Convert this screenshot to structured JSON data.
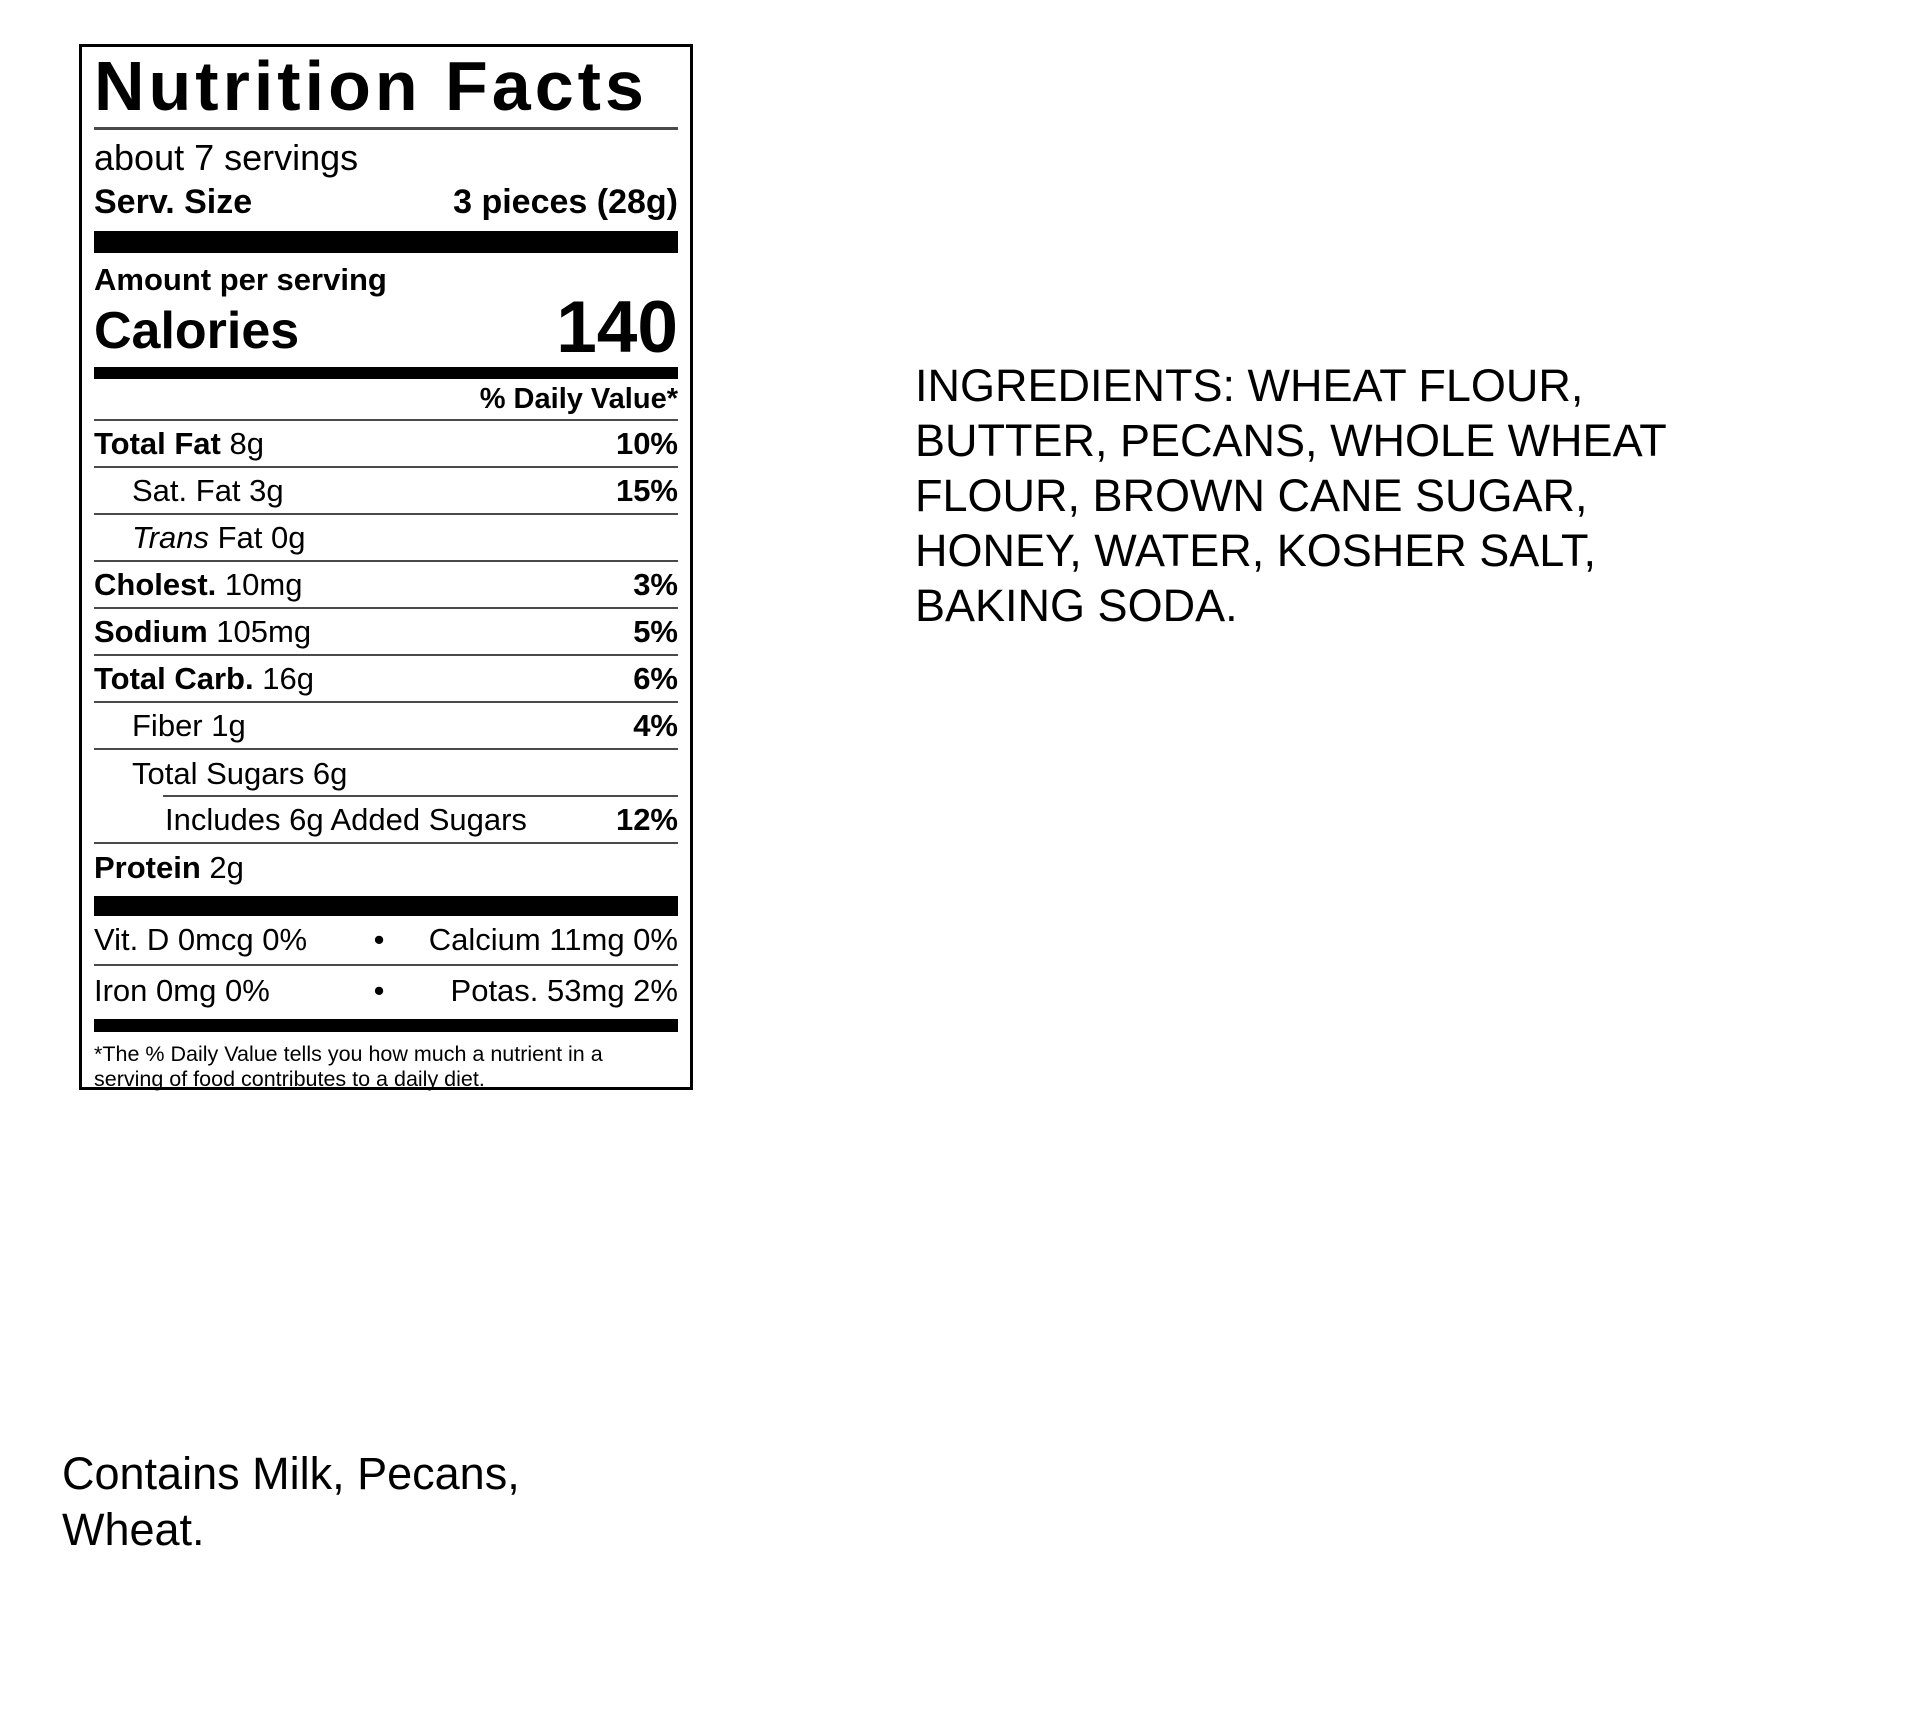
{
  "nutrition_label": {
    "title": "Nutrition Facts",
    "servings_statement": "about 7 servings",
    "serving_size": {
      "label": "Serv. Size",
      "value": "3 pieces (28g)"
    },
    "amount_per_serving": "Amount per serving",
    "calories": {
      "label": "Calories",
      "value": "140"
    },
    "daily_value_header": "% Daily Value*",
    "nutrient_rows": [
      {
        "bold": "Total Fat",
        "italic": "",
        "rest": " 8g",
        "dv": "10%"
      },
      {
        "bold": "",
        "italic": "",
        "rest": "Sat. Fat 3g",
        "dv": "15%"
      },
      {
        "bold": "",
        "italic": "Trans",
        "rest": " Fat 0g",
        "dv": ""
      },
      {
        "bold": "Cholest.",
        "italic": "",
        "rest": " 10mg",
        "dv": "3%"
      },
      {
        "bold": "Sodium",
        "italic": "",
        "rest": " 105mg",
        "dv": "5%"
      },
      {
        "bold": "Total Carb.",
        "italic": "",
        "rest": " 16g",
        "dv": "6%"
      },
      {
        "bold": "",
        "italic": "",
        "rest": "Fiber 1g",
        "dv": "4%"
      },
      {
        "bold": "",
        "italic": "",
        "rest": "Total Sugars 6g",
        "dv": ""
      },
      {
        "bold": "",
        "italic": "",
        "rest": "Includes 6g Added Sugars",
        "dv": "12%"
      },
      {
        "bold": "Protein",
        "italic": "",
        "rest": " 2g",
        "dv": ""
      }
    ],
    "micronutrients": [
      {
        "left": "Vit. D 0mcg 0%",
        "bullet": "•",
        "right": "Calcium 11mg 0%"
      },
      {
        "left": "Iron 0mg 0%",
        "bullet": "•",
        "right": "Potas. 53mg 2%"
      }
    ],
    "footnote": "*The % Daily Value tells you how much a nutrient in a\nserving of food contributes to a daily diet."
  },
  "ingredients": {
    "text": "INGREDIENTS: WHEAT FLOUR,\nBUTTER, PECANS, WHOLE WHEAT\nFLOUR, BROWN CANE SUGAR,\nHONEY, WATER, KOSHER SALT,\nBAKING SODA."
  },
  "allergens": {
    "text": "Contains Milk, Pecans,\nWheat."
  },
  "colors": {
    "text": "#000000",
    "bar": "#000000",
    "rule": "#4a4a4a",
    "background": "#ffffff"
  }
}
